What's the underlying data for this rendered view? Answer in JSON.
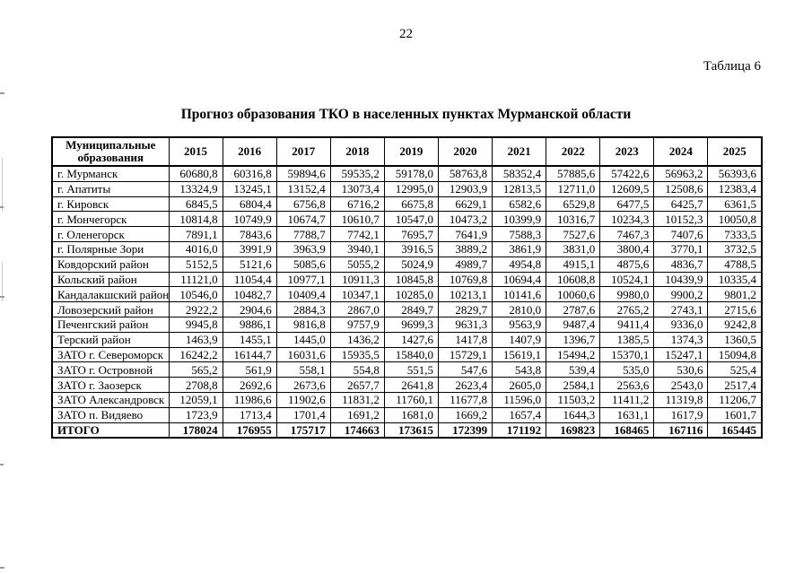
{
  "page": {
    "number": "22",
    "table_label": "Таблица 6",
    "title": "Прогноз образования ТКО в населенных пунктах Мурманской области"
  },
  "table": {
    "header_col": "Муниципальные образования",
    "years": [
      "2015",
      "2016",
      "2017",
      "2018",
      "2019",
      "2020",
      "2021",
      "2022",
      "2023",
      "2024",
      "2025"
    ],
    "rows": [
      {
        "name": "г. Мурманск",
        "values": [
          "60680,8",
          "60316,8",
          "59894,6",
          "59535,2",
          "59178,0",
          "58763,8",
          "58352,4",
          "57885,6",
          "57422,6",
          "56963,2",
          "56393,6"
        ]
      },
      {
        "name": "г. Апатиты",
        "values": [
          "13324,9",
          "13245,1",
          "13152,4",
          "13073,4",
          "12995,0",
          "12903,9",
          "12813,5",
          "12711,0",
          "12609,5",
          "12508,6",
          "12383,4"
        ]
      },
      {
        "name": "г. Кировск",
        "values": [
          "6845,5",
          "6804,4",
          "6756,8",
          "6716,2",
          "6675,8",
          "6629,1",
          "6582,6",
          "6529,8",
          "6477,5",
          "6425,7",
          "6361,5"
        ]
      },
      {
        "name": "г. Мончегорск",
        "values": [
          "10814,8",
          "10749,9",
          "10674,7",
          "10610,7",
          "10547,0",
          "10473,2",
          "10399,9",
          "10316,7",
          "10234,3",
          "10152,3",
          "10050,8"
        ]
      },
      {
        "name": "г. Оленегорск",
        "values": [
          "7891,1",
          "7843,6",
          "7788,7",
          "7742,1",
          "7695,7",
          "7641,9",
          "7588,3",
          "7527,6",
          "7467,3",
          "7407,6",
          "7333,5"
        ]
      },
      {
        "name": "г. Полярные Зори",
        "values": [
          "4016,0",
          "3991,9",
          "3963,9",
          "3940,1",
          "3916,5",
          "3889,2",
          "3861,9",
          "3831,0",
          "3800,4",
          "3770,1",
          "3732,5"
        ]
      },
      {
        "name": "Ковдорский район",
        "values": [
          "5152,5",
          "5121,6",
          "5085,6",
          "5055,2",
          "5024,9",
          "4989,7",
          "4954,8",
          "4915,1",
          "4875,6",
          "4836,7",
          "4788,5"
        ]
      },
      {
        "name": "Кольский район",
        "values": [
          "11121,0",
          "11054,4",
          "10977,1",
          "10911,3",
          "10845,8",
          "10769,8",
          "10694,4",
          "10608,8",
          "10524,1",
          "10439,9",
          "10335,4"
        ]
      },
      {
        "name": "Кандалакшский район",
        "values": [
          "10546,0",
          "10482,7",
          "10409,4",
          "10347,1",
          "10285,0",
          "10213,1",
          "10141,6",
          "10060,6",
          "9980,0",
          "9900,2",
          "9801,2"
        ]
      },
      {
        "name": "Ловозерский район",
        "values": [
          "2922,2",
          "2904,6",
          "2884,3",
          "2867,0",
          "2849,7",
          "2829,7",
          "2810,0",
          "2787,6",
          "2765,2",
          "2743,1",
          "2715,6"
        ]
      },
      {
        "name": "Печенгский район",
        "values": [
          "9945,8",
          "9886,1",
          "9816,8",
          "9757,9",
          "9699,3",
          "9631,3",
          "9563,9",
          "9487,4",
          "9411,4",
          "9336,0",
          "9242,8"
        ]
      },
      {
        "name": "Терский район",
        "values": [
          "1463,9",
          "1455,1",
          "1445,0",
          "1436,2",
          "1427,6",
          "1417,8",
          "1407,9",
          "1396,7",
          "1385,5",
          "1374,3",
          "1360,5"
        ]
      },
      {
        "name": "ЗАТО г. Североморск",
        "values": [
          "16242,2",
          "16144,7",
          "16031,6",
          "15935,5",
          "15840,0",
          "15729,1",
          "15619,1",
          "15494,2",
          "15370,1",
          "15247,1",
          "15094,8"
        ]
      },
      {
        "name": "ЗАТО г. Островной",
        "values": [
          "565,2",
          "561,9",
          "558,1",
          "554,8",
          "551,5",
          "547,6",
          "543,8",
          "539,4",
          "535,0",
          "530,6",
          "525,4"
        ]
      },
      {
        "name": "ЗАТО г. Заозерск",
        "values": [
          "2708,8",
          "2692,6",
          "2673,6",
          "2657,7",
          "2641,8",
          "2623,4",
          "2605,0",
          "2584,1",
          "2563,6",
          "2543,0",
          "2517,4"
        ]
      },
      {
        "name": "ЗАТО Александровск",
        "values": [
          "12059,1",
          "11986,6",
          "11902,6",
          "11831,2",
          "11760,1",
          "11677,8",
          "11596,0",
          "11503,2",
          "11411,2",
          "11319,8",
          "11206,7"
        ]
      },
      {
        "name": "ЗАТО п. Видяево",
        "values": [
          "1723,9",
          "1713,4",
          "1701,4",
          "1691,2",
          "1681,0",
          "1669,2",
          "1657,4",
          "1644,3",
          "1631,1",
          "1617,9",
          "1601,7"
        ]
      }
    ],
    "total": {
      "name": "ИТОГО",
      "values": [
        "178024",
        "176955",
        "175717",
        "174663",
        "173615",
        "172399",
        "171192",
        "169823",
        "168465",
        "167116",
        "165445"
      ]
    }
  }
}
